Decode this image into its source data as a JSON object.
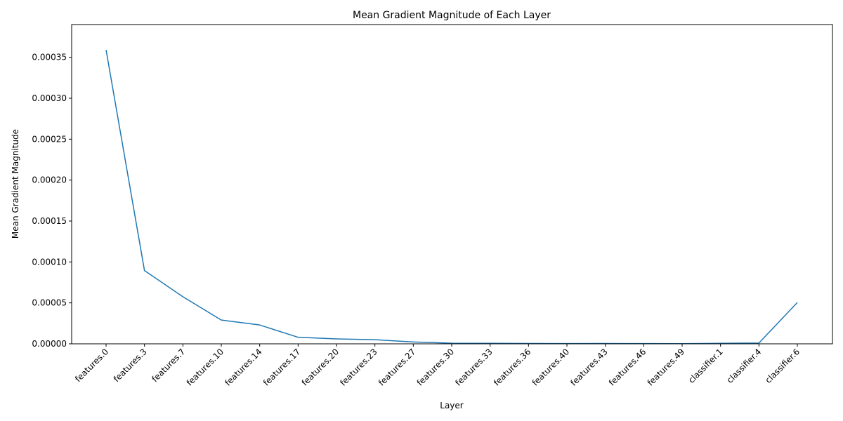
{
  "chart_data": {
    "type": "line",
    "title": "Mean Gradient Magnitude of Each Layer",
    "xlabel": "Layer",
    "ylabel": "Mean Gradient Magnitude",
    "categories": [
      "features.0",
      "features.3",
      "features.7",
      "features.10",
      "features.14",
      "features.17",
      "features.20",
      "features.23",
      "features.27",
      "features.30",
      "features.33",
      "features.36",
      "features.40",
      "features.43",
      "features.46",
      "features.49",
      "classifier.1",
      "classifier.4",
      "classifier.6"
    ],
    "series": [
      {
        "color": "#1f77b4",
        "values": [
          0.000359,
          8.95e-05,
          5.75e-05,
          2.9e-05,
          2.3e-05,
          8e-06,
          6e-06,
          5e-06,
          2.2e-06,
          8e-07,
          6e-07,
          4e-07,
          3e-07,
          4e-07,
          3e-07,
          2e-07,
          6e-07,
          1e-06,
          5.05e-05
        ]
      }
    ],
    "ylim": [
      0,
      0.00039
    ],
    "yticks": [
      0,
      5e-05,
      0.0001,
      0.00015,
      0.0002,
      0.00025,
      0.0003,
      0.00035
    ],
    "ytick_labels": [
      "0.00000",
      "0.00005",
      "0.00010",
      "0.00015",
      "0.00020",
      "0.00025",
      "0.00030",
      "0.00035"
    ],
    "grid": false,
    "xtick_rotation_deg": 45
  }
}
